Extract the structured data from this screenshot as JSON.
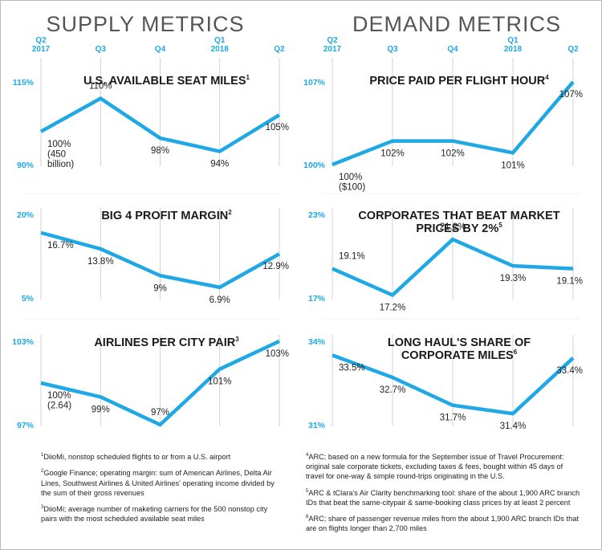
{
  "headings": {
    "supply": "SUPPLY METRICS",
    "demand": "DEMAND METRICS"
  },
  "colors": {
    "line": "#1ea8e6",
    "tick": "#1ea8e6",
    "grid": "#c8c8c8",
    "text": "#222222"
  },
  "chart_data": [
    {
      "type": "line",
      "title": "U.S. AVAILABLE SEAT MILES",
      "title_sup": "1",
      "categories": [
        "Q2 2017",
        "Q3",
        "Q4",
        "Q1 2018",
        "Q2"
      ],
      "category_labels": [
        [
          "Q2",
          "2017"
        ],
        [
          "Q3"
        ],
        [
          "Q4"
        ],
        [
          "Q1",
          "2018"
        ],
        [
          "Q2"
        ]
      ],
      "values": [
        100,
        110,
        98,
        94,
        105
      ],
      "point_labels": [
        [
          "100%",
          "(450",
          "billion)"
        ],
        [
          "110%"
        ],
        [
          "98%"
        ],
        [
          "94%"
        ],
        [
          "105%"
        ]
      ],
      "yticks": [
        "115%",
        "90%"
      ],
      "ylim": [
        90,
        115
      ]
    },
    {
      "type": "line",
      "title": "BIG 4 PROFIT MARGIN",
      "title_sup": "2",
      "categories": [
        "Q2 2017",
        "Q3",
        "Q4",
        "Q1 2018",
        "Q2"
      ],
      "values": [
        16.7,
        13.8,
        9,
        6.9,
        12.9
      ],
      "point_labels": [
        [
          "16.7%"
        ],
        [
          "13.8%"
        ],
        [
          "9%"
        ],
        [
          "6.9%"
        ],
        [
          "12.9%"
        ]
      ],
      "yticks": [
        "20%",
        "5%"
      ],
      "ylim": [
        5,
        20
      ]
    },
    {
      "type": "line",
      "title": "AIRLINES PER CITY PAIR",
      "title_sup": "3",
      "categories": [
        "Q2 2017",
        "Q3",
        "Q4",
        "Q1 2018",
        "Q2"
      ],
      "values": [
        100,
        99,
        97,
        101,
        103
      ],
      "point_labels": [
        [
          "100%",
          "(2.64)"
        ],
        [
          "99%"
        ],
        [
          "97%"
        ],
        [
          "101%"
        ],
        [
          "103%"
        ]
      ],
      "yticks": [
        "103%",
        "97%"
      ],
      "ylim": [
        97,
        103
      ]
    },
    {
      "type": "line",
      "title": "PRICE PAID PER FLIGHT HOUR",
      "title_sup": "4",
      "categories": [
        "Q2 2017",
        "Q3",
        "Q4",
        "Q1 2018",
        "Q2"
      ],
      "category_labels": [
        [
          "Q2",
          "2017"
        ],
        [
          "Q3"
        ],
        [
          "Q4"
        ],
        [
          "Q1",
          "2018"
        ],
        [
          "Q2"
        ]
      ],
      "values": [
        100,
        102,
        102,
        101,
        107
      ],
      "point_labels": [
        [
          "100%",
          "($100)"
        ],
        [
          "102%"
        ],
        [
          "102%"
        ],
        [
          "101%"
        ],
        [
          "107%"
        ]
      ],
      "yticks": [
        "107%",
        "100%"
      ],
      "ylim": [
        100,
        107
      ]
    },
    {
      "type": "line",
      "title": "CORPORATES THAT BEAT MARKET PRICES BY 2%",
      "title_lines": [
        "CORPORATES THAT BEAT MARKET",
        "PRICES BY 2%"
      ],
      "title_sup": "5",
      "categories": [
        "Q2 2017",
        "Q3",
        "Q4",
        "Q1 2018",
        "Q2"
      ],
      "values": [
        19.1,
        17.2,
        21.2,
        19.3,
        19.1
      ],
      "point_labels": [
        [
          "19.1%"
        ],
        [
          "17.2%"
        ],
        [
          "21.2%"
        ],
        [
          "19.3%"
        ],
        [
          "19.1%"
        ]
      ],
      "yticks": [
        "23%",
        "17%"
      ],
      "ylim": [
        17,
        23
      ]
    },
    {
      "type": "line",
      "title": "LONG HAUL'S SHARE OF CORPORATE MILES",
      "title_lines": [
        "LONG HAUL'S SHARE OF",
        "CORPORATE MILES"
      ],
      "title_sup": "6",
      "categories": [
        "Q2 2017",
        "Q3",
        "Q4",
        "Q1 2018",
        "Q2"
      ],
      "values": [
        33.5,
        32.7,
        31.7,
        31.4,
        33.4
      ],
      "point_labels": [
        [
          "33.5%"
        ],
        [
          "32.7%"
        ],
        [
          "31.7%"
        ],
        [
          "31.4%"
        ],
        [
          "33.4%"
        ]
      ],
      "yticks": [
        "34%",
        "31%"
      ],
      "ylim": [
        31,
        34
      ]
    }
  ],
  "footnotes": {
    "left": [
      {
        "sup": "1",
        "text": "DiioMi, nonstop scheduled flights to or from a U.S. airport"
      },
      {
        "sup": "2",
        "text": "Google Finance; operating margin: sum of American Airlines, Delta Air Lines, Southwest Airlines & United Airlines' operating income divided by the sum of their gross revenues"
      },
      {
        "sup": "3",
        "text": "DiioMi; average number of maketing carriers for the 500 nonstop city pairs with the most scheduled available seat miles"
      }
    ],
    "right": [
      {
        "sup": "4",
        "text": "ARC; based on a new formula for the September issue of Travel Procurement: original sale corporate tickets, excluding taxes & fees, bought within 45 days of travel for one-way & simple round-trips originating in the U.S."
      },
      {
        "sup": "5",
        "text": "ARC & tClara's Air Clarity benchmarking tool: share of the about 1,900 ARC branch IDs that beat the same-citypair & same-booking class prices by at least 2 percent"
      },
      {
        "sup": "6",
        "text": "ARC; share of passenger revenue miles from the about 1,900 ARC branch IDs that are on flights longer than 2,700 miles"
      }
    ]
  }
}
